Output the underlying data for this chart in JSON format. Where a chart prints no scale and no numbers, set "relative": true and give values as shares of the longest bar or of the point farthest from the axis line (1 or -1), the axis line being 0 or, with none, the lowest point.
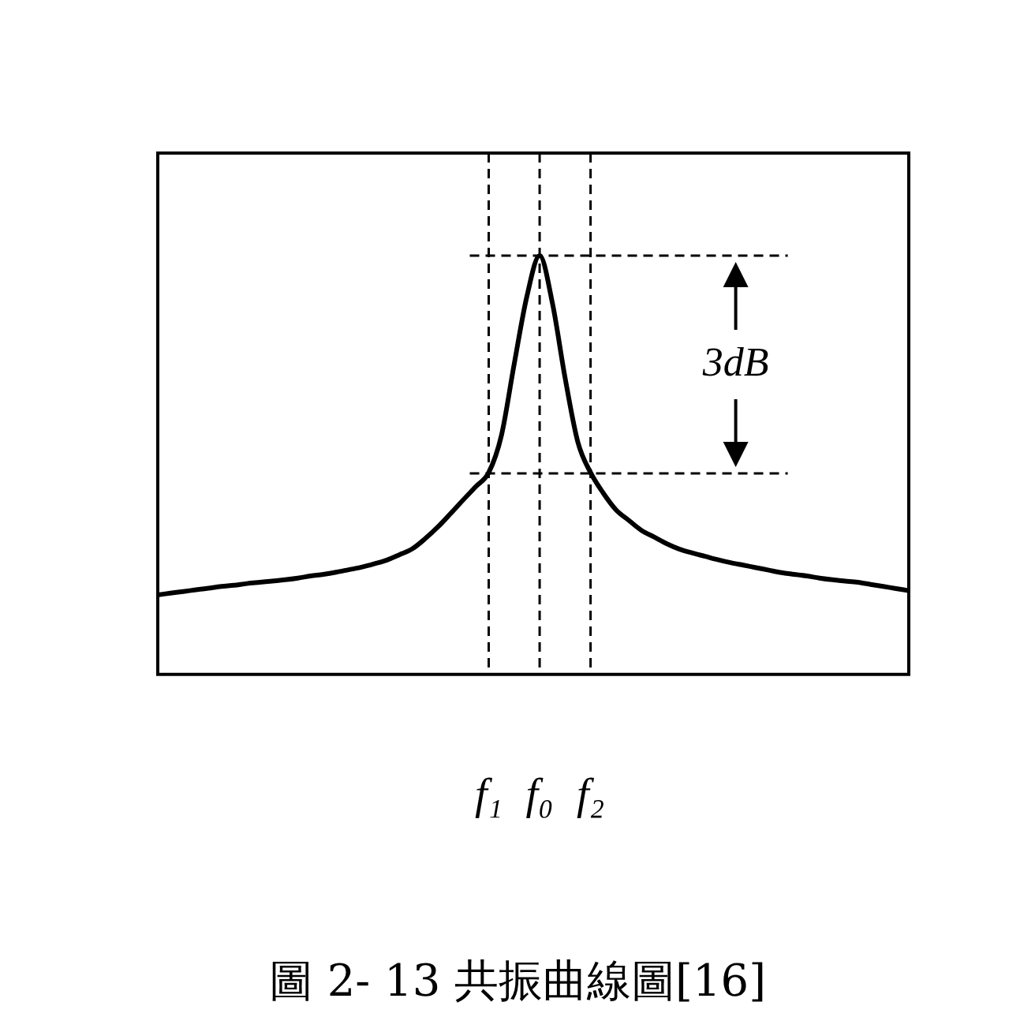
{
  "chart_data": {
    "type": "line",
    "title": "圖 2- 13 共振曲線圖[16]",
    "relative": true,
    "marker": "none",
    "categories": [
      null,
      null,
      null,
      null,
      null,
      null,
      null,
      null,
      null,
      null,
      null,
      null,
      null,
      null,
      null,
      null,
      null,
      null,
      null,
      null,
      null,
      null,
      null,
      null,
      null,
      null,
      "f₁",
      null,
      null,
      null,
      "f₀",
      null,
      null,
      null,
      "f₂",
      null,
      null,
      null,
      null,
      null,
      null,
      null,
      null,
      null,
      null,
      null,
      null,
      null,
      null,
      null,
      null,
      null,
      null,
      null,
      null,
      null,
      null,
      null,
      null,
      null
    ],
    "series": [
      {
        "color": "#000000",
        "values": [
          0.19,
          0.194,
          0.198,
          0.202,
          0.206,
          0.21,
          0.213,
          0.217,
          0.22,
          0.223,
          0.226,
          0.23,
          0.235,
          0.239,
          0.244,
          0.25,
          0.256,
          0.264,
          0.273,
          0.286,
          0.3,
          0.324,
          0.352,
          0.384,
          0.417,
          0.449,
          0.482,
          0.571,
          0.741,
          0.903,
          1,
          0.887,
          0.708,
          0.555,
          0.482,
          0.433,
          0.393,
          0.368,
          0.344,
          0.328,
          0.312,
          0.299,
          0.29,
          0.282,
          0.274,
          0.267,
          0.261,
          0.255,
          0.249,
          0.243,
          0.239,
          0.235,
          0.23,
          0.226,
          0.223,
          0.22,
          0.215,
          0.21,
          0.205,
          0.2
        ]
      }
    ],
    "ref_lines": [
      {
        "axis": "x",
        "value": "f₁",
        "line_style": "dashed"
      },
      {
        "axis": "x",
        "value": "f₀",
        "line_style": "dashed"
      },
      {
        "axis": "x",
        "value": "f₂",
        "line_style": "dashed"
      },
      {
        "axis": "y",
        "value": 1,
        "line_style": "dashed"
      },
      {
        "axis": "y",
        "value": 0.48,
        "line_style": "dashed"
      }
    ],
    "annotations": [
      "3dB"
    ]
  }
}
